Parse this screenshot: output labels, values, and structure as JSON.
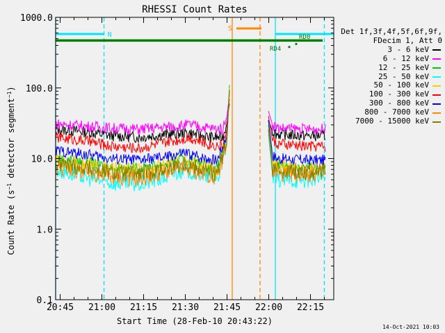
{
  "chart_data": {
    "type": "line",
    "title": "RHESSI Count Rates",
    "xlabel": "Start Time (28-Feb-10 20:43:22)",
    "ylabel": "Count Rate (s⁻¹ detector segment⁻¹)",
    "yscale": "log",
    "ylim": [
      0.1,
      1000
    ],
    "xlim_minutes": [
      0,
      100
    ],
    "y_ticks": [
      "1000.0",
      "100.0",
      "10.0",
      "1.0",
      "0.1"
    ],
    "x_ticks": [
      {
        "t": 1.63,
        "label": "20:45"
      },
      {
        "t": 16.63,
        "label": "21:00"
      },
      {
        "t": 31.63,
        "label": "21:15"
      },
      {
        "t": 46.63,
        "label": "21:30"
      },
      {
        "t": 61.63,
        "label": "21:45"
      },
      {
        "t": 76.63,
        "label": "22:00"
      },
      {
        "t": 91.63,
        "label": "22:15"
      }
    ],
    "series": [
      {
        "name": "3 - 6 keV",
        "color": "#000000",
        "x": [
          0,
          10,
          20,
          30,
          40,
          48,
          55,
          60,
          61.5,
          62.5,
          76.5,
          78,
          80,
          90,
          97
        ],
        "y": [
          26,
          24,
          21,
          20,
          22,
          23,
          20,
          20,
          30,
          60,
          35,
          24,
          22,
          21,
          21
        ]
      },
      {
        "name": "6 - 12 keV",
        "color": "#ff00ff",
        "x": [
          0,
          10,
          20,
          30,
          40,
          48,
          55,
          60,
          61.5,
          62.5,
          76.5,
          78,
          80,
          90,
          97
        ],
        "y": [
          31,
          29,
          27,
          26,
          28,
          30,
          27,
          26,
          38,
          80,
          47,
          30,
          27,
          26,
          26
        ]
      },
      {
        "name": "12 - 25 keV",
        "color": "#00cc00",
        "x": [
          0,
          10,
          20,
          30,
          40,
          46,
          52,
          58,
          61.5,
          62.5,
          76.5,
          78,
          80,
          90,
          97
        ],
        "y": [
          10,
          9,
          7.5,
          7.2,
          8.5,
          10,
          8.5,
          7,
          20,
          110,
          30,
          9,
          8,
          7.5,
          7.5
        ]
      },
      {
        "name": "25 - 50 keV",
        "color": "#00ffff",
        "x": [
          0,
          10,
          20,
          30,
          40,
          46,
          52,
          58,
          61.5,
          62.5,
          76.5,
          78,
          80,
          90,
          97
        ],
        "y": [
          7,
          5.5,
          4.5,
          4.3,
          5.5,
          7,
          6,
          5,
          15,
          90,
          22,
          5.5,
          5,
          5,
          5.5
        ]
      },
      {
        "name": "50 - 100 keV",
        "color": "#ffcc00",
        "x": [
          0,
          10,
          20,
          30,
          40,
          46,
          52,
          58,
          61.5,
          62.5,
          76.5,
          78,
          80,
          90,
          97
        ],
        "y": [
          9,
          8,
          6.8,
          6.5,
          7.8,
          9,
          7.8,
          6.5,
          18,
          100,
          27,
          8,
          7.5,
          7,
          7
        ]
      },
      {
        "name": "100 - 300 keV",
        "color": "#ff0000",
        "x": [
          0,
          10,
          20,
          30,
          40,
          48,
          55,
          60,
          61.5,
          62.5,
          76.5,
          78,
          80,
          90,
          97
        ],
        "y": [
          20,
          18,
          15,
          14,
          17,
          20,
          16,
          15,
          25,
          70,
          40,
          18,
          16,
          15,
          15
        ]
      },
      {
        "name": "300 - 800 keV",
        "color": "#0000ff",
        "x": [
          0,
          10,
          20,
          30,
          40,
          46,
          52,
          58,
          61.5,
          62.5,
          76.5,
          78,
          80,
          90,
          97
        ],
        "y": [
          13,
          11.5,
          10,
          9.5,
          10.5,
          12,
          10.5,
          9.5,
          20,
          90,
          35,
          11,
          10,
          9.5,
          9.5
        ]
      },
      {
        "name": "800 - 7000 keV",
        "color": "#ff8800",
        "x": [
          0,
          10,
          20,
          30,
          40,
          46,
          52,
          58,
          61.5,
          62.5,
          76.5,
          78,
          80,
          90,
          97
        ],
        "y": [
          7.5,
          6.5,
          5.5,
          5.2,
          6.5,
          7.5,
          6.2,
          5.5,
          15,
          85,
          25,
          6.5,
          6,
          6,
          6
        ]
      },
      {
        "name": "7000 - 15000 keV",
        "color": "#808000",
        "x": [
          0,
          10,
          20,
          30,
          40,
          46,
          52,
          58,
          61.5,
          62.5,
          76.5,
          78,
          80,
          90,
          97
        ],
        "y": [
          8.5,
          7.5,
          6.2,
          6,
          7.2,
          8.5,
          7.2,
          6,
          16,
          95,
          26,
          7.2,
          6.8,
          6.5,
          6.5
        ]
      }
    ],
    "gaps": [
      [
        62.6,
        76.4
      ]
    ],
    "annotations": {
      "n_label": "N",
      "s_label": "S",
      "rd4_label": "RD4",
      "rd0_label": "RD0",
      "night_bars": [
        {
          "from": 0,
          "to": 17.4,
          "color": "#00e5ff"
        },
        {
          "from": 79,
          "to": 100,
          "color": "#00e5ff"
        }
      ],
      "saa_bar": {
        "from": 65,
        "to": 74,
        "color": "#ff8800"
      },
      "gap_line_y": 470,
      "gap_line_color": "#008000",
      "vertical_markers": [
        {
          "t": 0,
          "color": "#00e5ff",
          "dashed": false
        },
        {
          "t": 17.4,
          "color": "#00e5ff",
          "dashed": true
        },
        {
          "t": 63.5,
          "color": "#ff8800",
          "dashed": false
        },
        {
          "t": 73.5,
          "color": "#ff8800",
          "dashed": true
        },
        {
          "t": 79,
          "color": "#00e5ff",
          "dashed": false
        },
        {
          "t": 96.6,
          "color": "#00e5ff",
          "dashed": true
        }
      ]
    }
  },
  "legend": {
    "header_line1": "Det 1f,3f,4f,5f,6f,9f,",
    "header_line2": "FDecim 1, Att 0",
    "items": [
      {
        "label": "3 - 6 keV",
        "color": "#000000"
      },
      {
        "label": "6 - 12 keV",
        "color": "#ff00ff"
      },
      {
        "label": "12 - 25 keV",
        "color": "#00cc00"
      },
      {
        "label": "25 - 50 keV",
        "color": "#00ffff"
      },
      {
        "label": "50 - 100 keV",
        "color": "#ffcc00"
      },
      {
        "label": "100 - 300 keV",
        "color": "#ff0000"
      },
      {
        "label": "300 - 800 keV",
        "color": "#0000ff"
      },
      {
        "label": "800 - 7000 keV",
        "color": "#ff8800"
      },
      {
        "label": "7000 - 15000 keV",
        "color": "#808000"
      }
    ]
  },
  "timestamp": "14-Oct-2021 10:03"
}
